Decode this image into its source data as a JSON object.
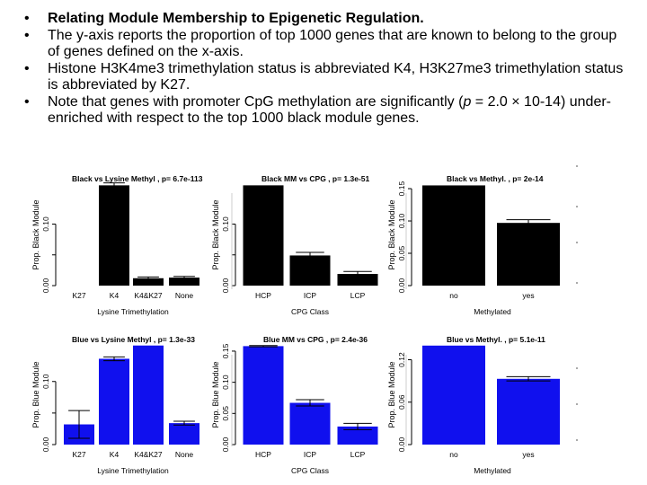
{
  "bullets": [
    {
      "text": "Relating Module Membership to Epigenetic Regulation."
    },
    {
      "text": "The y-axis reports the proportion of top 1000 genes that are known to belong to the group of genes defined on the x-axis."
    },
    {
      "text": "Histone H3K4me3 trimethylation status is abbreviated K4, H3K27me3 trimethylation status is abbreviated by K27."
    },
    {
      "pre": "Note that genes with promoter CpG methylation are significantly (",
      "italic": "p",
      "post": " = 2.0 × 10-14) under-enriched with respect to the top 1000 black module genes."
    }
  ],
  "bullet_glyph": "•",
  "colors": {
    "black": "#000000",
    "blue": "#1010ee"
  },
  "chart_data": [
    {
      "type": "bar",
      "title": "Black vs Lysine Methyl , p= 6.7e-113",
      "xlabel": "Lysine Trimethylation",
      "ylabel": "Prop. Black Module",
      "categories": [
        "K27",
        "K4",
        "K4&K27",
        "None"
      ],
      "values": [
        0.0,
        0.163,
        0.012,
        0.013
      ],
      "errors": [
        0,
        0.004,
        0.002,
        0.002
      ],
      "ylim": [
        0,
        0.165
      ],
      "ticks": [
        0.0,
        0.05,
        0.1
      ],
      "tick_labels": [
        "0.00",
        "",
        "0.10"
      ],
      "color": "black"
    },
    {
      "type": "bar",
      "title": "Black MM vs CPG , p= 1.3e-51",
      "xlabel": "CPG Class",
      "ylabel": "Prop. Black Module",
      "categories": [
        "HCP",
        "ICP",
        "LCP"
      ],
      "values": [
        0.163,
        0.049,
        0.019
      ],
      "errors": [
        0,
        0.005,
        0.004
      ],
      "ylim": [
        0,
        0.165
      ],
      "ticks": [
        0.0,
        0.05,
        0.1
      ],
      "tick_labels": [
        "0.00",
        "",
        "0.10"
      ],
      "color": "black"
    },
    {
      "type": "bar",
      "title": "Black vs Methyl. , p= 2e-14",
      "xlabel": "Methylated",
      "ylabel": "Prop. Black Module",
      "categories": [
        "no",
        "yes"
      ],
      "values": [
        0.155,
        0.097
      ],
      "errors": [
        0,
        0.005
      ],
      "ylim": [
        0,
        0.157
      ],
      "ticks": [
        0.0,
        0.05,
        0.1,
        0.15
      ],
      "tick_labels": [
        "0.00",
        "0.05",
        "0.10",
        "0.15"
      ],
      "color": "black"
    },
    {
      "type": "bar",
      "title": "Blue vs Lysine Methyl , p= 1.3e-33",
      "xlabel": "Lysine Trimethylation",
      "ylabel": "Prop. Blue Module",
      "categories": [
        "K27",
        "K4",
        "K4&K27",
        "None"
      ],
      "values": [
        0.032,
        0.136,
        0.157,
        0.034
      ],
      "errors": [
        0.022,
        0.003,
        0,
        0.003
      ],
      "ylim": [
        0,
        0.158
      ],
      "ticks": [
        0.0,
        0.05,
        0.1
      ],
      "tick_labels": [
        "0.00",
        "",
        "0.10"
      ],
      "color": "blue"
    },
    {
      "type": "bar",
      "title": "Blue MM vs CPG , p= 2.4e-36",
      "xlabel": "CPG Class",
      "ylabel": "Prop. Blue Module",
      "categories": [
        "HCP",
        "ICP",
        "LCP"
      ],
      "values": [
        0.158,
        0.067,
        0.029
      ],
      "errors": [
        0.001,
        0.005,
        0.005
      ],
      "ylim": [
        0,
        0.16
      ],
      "ticks": [
        0.0,
        0.05,
        0.1,
        0.15
      ],
      "tick_labels": [
        "0.00",
        "0.05",
        "0.10",
        "0.15"
      ],
      "color": "blue"
    },
    {
      "type": "bar",
      "title": "Blue vs Methyl. , p= 5.1e-11",
      "xlabel": "Methylated",
      "ylabel": "Prop. Blue Module",
      "categories": [
        "no",
        "yes"
      ],
      "values": [
        0.14,
        0.093
      ],
      "errors": [
        0,
        0.003
      ],
      "ylim": [
        0,
        0.141
      ],
      "ticks": [
        0.0,
        0.06,
        0.12
      ],
      "tick_labels": [
        "0.00",
        "0.06",
        "0.12"
      ],
      "color": "blue"
    }
  ]
}
